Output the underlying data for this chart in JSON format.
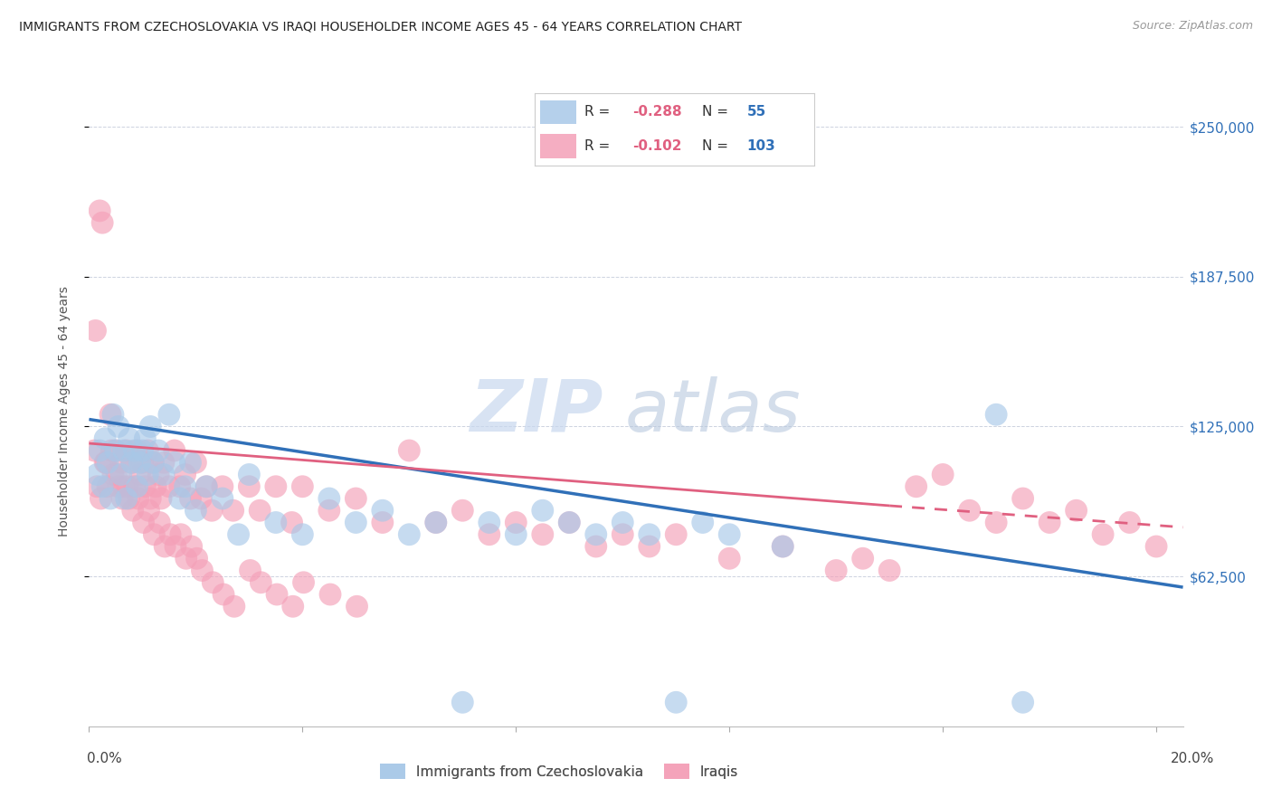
{
  "title": "IMMIGRANTS FROM CZECHOSLOVAKIA VS IRAQI HOUSEHOLDER INCOME AGES 45 - 64 YEARS CORRELATION CHART",
  "source": "Source: ZipAtlas.com",
  "ylabel": "Householder Income Ages 45 - 64 years",
  "xlim": [
    0.0,
    20.5
  ],
  "ylim": [
    0,
    262500
  ],
  "ytick_vals": [
    62500,
    125000,
    187500,
    250000
  ],
  "ytick_labels": [
    "$62,500",
    "$125,000",
    "$187,500",
    "$250,000"
  ],
  "legend1_R": "-0.288",
  "legend1_N": "55",
  "legend2_R": "-0.102",
  "legend2_N": "103",
  "legend1_label": "Immigrants from Czechoslovakia",
  "legend2_label": "Iraqis",
  "blue_scatter_color": "#a8c8e8",
  "pink_scatter_color": "#f4a0b8",
  "blue_line_color": "#3070b8",
  "pink_line_color": "#e06080",
  "legend_R_color": "#e06080",
  "legend_N_color": "#3070b8",
  "right_label_color": "#3070b8",
  "watermark": "ZIPAtlas",
  "watermark_zip_color": "#c8d8ee",
  "watermark_atlas_color": "#c0cce0",
  "blue_x": [
    0.15,
    0.2,
    0.25,
    0.3,
    0.35,
    0.4,
    0.45,
    0.5,
    0.55,
    0.6,
    0.65,
    0.7,
    0.75,
    0.8,
    0.85,
    0.9,
    0.95,
    1.0,
    1.05,
    1.1,
    1.15,
    1.2,
    1.3,
    1.4,
    1.5,
    1.6,
    1.7,
    1.8,
    1.9,
    2.0,
    2.2,
    2.5,
    2.8,
    3.0,
    3.5,
    4.0,
    4.5,
    5.0,
    5.5,
    6.0,
    6.5,
    7.0,
    7.5,
    8.0,
    8.5,
    9.0,
    9.5,
    10.0,
    10.5,
    11.0,
    11.5,
    12.0,
    13.0,
    17.0,
    17.5
  ],
  "blue_y": [
    105000,
    115000,
    100000,
    120000,
    110000,
    95000,
    130000,
    115000,
    125000,
    105000,
    115000,
    95000,
    120000,
    110000,
    115000,
    100000,
    110000,
    115000,
    120000,
    105000,
    125000,
    110000,
    115000,
    105000,
    130000,
    110000,
    95000,
    100000,
    110000,
    90000,
    100000,
    95000,
    80000,
    105000,
    85000,
    80000,
    95000,
    85000,
    90000,
    80000,
    85000,
    10000,
    85000,
    80000,
    90000,
    85000,
    80000,
    85000,
    80000,
    10000,
    85000,
    80000,
    75000,
    130000,
    10000
  ],
  "pink_x": [
    0.1,
    0.15,
    0.2,
    0.25,
    0.3,
    0.35,
    0.4,
    0.45,
    0.5,
    0.55,
    0.6,
    0.65,
    0.7,
    0.75,
    0.8,
    0.85,
    0.9,
    0.95,
    1.0,
    1.05,
    1.1,
    1.15,
    1.2,
    1.25,
    1.3,
    1.35,
    1.4,
    1.5,
    1.6,
    1.7,
    1.8,
    1.9,
    2.0,
    2.1,
    2.2,
    2.3,
    2.5,
    2.7,
    3.0,
    3.2,
    3.5,
    3.8,
    4.0,
    4.5,
    5.0,
    5.5,
    6.0,
    6.5,
    7.0,
    7.5,
    8.0,
    8.5,
    9.0,
    9.5,
    10.0,
    10.5,
    11.0,
    12.0,
    13.0,
    14.0,
    14.5,
    15.0,
    15.5,
    16.0,
    16.5,
    17.0,
    17.5,
    18.0,
    18.5,
    19.0,
    19.5,
    20.0,
    0.12,
    0.22,
    0.32,
    0.42,
    0.52,
    0.62,
    0.72,
    0.82,
    0.92,
    1.02,
    1.12,
    1.22,
    1.32,
    1.42,
    1.52,
    1.62,
    1.72,
    1.82,
    1.92,
    2.02,
    2.12,
    2.32,
    2.52,
    2.72,
    3.02,
    3.22,
    3.52,
    3.82,
    4.02,
    4.52,
    5.02
  ],
  "pink_y": [
    115000,
    100000,
    215000,
    210000,
    110000,
    100000,
    130000,
    105000,
    115000,
    100000,
    110000,
    100000,
    115000,
    95000,
    110000,
    100000,
    115000,
    105000,
    110000,
    100000,
    115000,
    95000,
    110000,
    100000,
    105000,
    95000,
    110000,
    100000,
    115000,
    100000,
    105000,
    95000,
    110000,
    95000,
    100000,
    90000,
    100000,
    90000,
    100000,
    90000,
    100000,
    85000,
    100000,
    90000,
    95000,
    85000,
    115000,
    85000,
    90000,
    80000,
    85000,
    80000,
    85000,
    75000,
    80000,
    75000,
    80000,
    70000,
    75000,
    65000,
    70000,
    65000,
    100000,
    105000,
    90000,
    85000,
    95000,
    85000,
    90000,
    80000,
    85000,
    75000,
    165000,
    95000,
    110000,
    115000,
    105000,
    95000,
    100000,
    90000,
    95000,
    85000,
    90000,
    80000,
    85000,
    75000,
    80000,
    75000,
    80000,
    70000,
    75000,
    70000,
    65000,
    60000,
    55000,
    50000,
    65000,
    60000,
    55000,
    50000,
    60000,
    55000,
    50000
  ],
  "blue_line_x0": 0.0,
  "blue_line_y0": 128000,
  "blue_line_x1": 20.5,
  "blue_line_y1": 58000,
  "pink_solid_x0": 0.0,
  "pink_solid_y0": 118000,
  "pink_solid_x1": 15.0,
  "pink_solid_y1": 92000,
  "pink_dash_x0": 15.0,
  "pink_dash_y0": 92000,
  "pink_dash_x1": 20.5,
  "pink_dash_y1": 83000
}
